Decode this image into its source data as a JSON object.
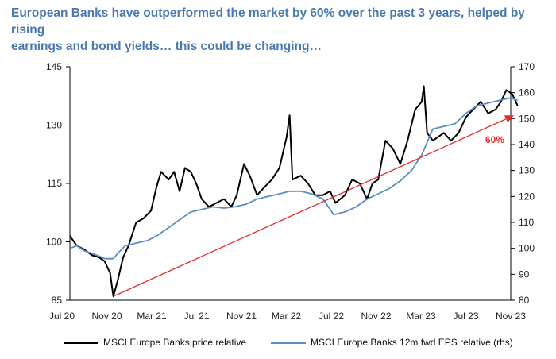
{
  "headline": {
    "line1": "European Banks have outperformed the market by 60% over the past 3 years, helped by rising",
    "line2": "earnings and bond yields… this could be changing…"
  },
  "chart_data": {
    "type": "line",
    "title": "European Banks have outperformed the market by 60% over the past 3 years, helped by rising earnings and bond yields… this could be changing…",
    "x_ticks": [
      "Jul 20",
      "Nov 20",
      "Mar 21",
      "Jul 21",
      "Nov 21",
      "Mar 22",
      "Jul 22",
      "Nov 22",
      "Mar 23",
      "Jul 23",
      "Nov 23"
    ],
    "xlim": [
      "2020-07",
      "2023-11"
    ],
    "y_left": {
      "ticks": [
        85,
        100,
        115,
        130,
        145
      ],
      "ylim": [
        85,
        145
      ]
    },
    "y_right": {
      "ticks": [
        80,
        90,
        100,
        110,
        120,
        130,
        140,
        150,
        160,
        170
      ],
      "ylim": [
        80,
        170
      ]
    },
    "grid": false,
    "legend_position": "bottom",
    "series": [
      {
        "name": "MSCI Europe Banks price relative",
        "axis": "left",
        "color": "#000000",
        "points": [
          [
            "2020-07-01",
            101.5
          ],
          [
            "2020-07-20",
            99
          ],
          [
            "2020-08-10",
            98
          ],
          [
            "2020-09-01",
            96.5
          ],
          [
            "2020-09-20",
            96
          ],
          [
            "2020-10-05",
            95
          ],
          [
            "2020-10-20",
            92
          ],
          [
            "2020-10-29",
            86
          ],
          [
            "2020-11-10",
            90
          ],
          [
            "2020-11-25",
            96
          ],
          [
            "2020-12-10",
            99
          ],
          [
            "2020-12-31",
            105
          ],
          [
            "2021-01-20",
            106
          ],
          [
            "2021-02-10",
            108
          ],
          [
            "2021-02-25",
            114
          ],
          [
            "2021-03-10",
            118
          ],
          [
            "2021-03-31",
            116
          ],
          [
            "2021-04-15",
            118
          ],
          [
            "2021-04-30",
            113
          ],
          [
            "2021-05-15",
            119
          ],
          [
            "2021-05-31",
            118
          ],
          [
            "2021-06-15",
            115
          ],
          [
            "2021-06-30",
            111
          ],
          [
            "2021-07-20",
            109
          ],
          [
            "2021-08-10",
            110
          ],
          [
            "2021-08-31",
            111
          ],
          [
            "2021-09-20",
            109
          ],
          [
            "2021-10-05",
            112
          ],
          [
            "2021-10-25",
            120
          ],
          [
            "2021-11-10",
            117
          ],
          [
            "2021-11-30",
            112
          ],
          [
            "2021-12-20",
            114
          ],
          [
            "2022-01-10",
            116
          ],
          [
            "2022-01-31",
            119
          ],
          [
            "2022-02-20",
            127
          ],
          [
            "2022-02-28",
            132.5
          ],
          [
            "2022-03-08",
            116
          ],
          [
            "2022-03-31",
            117
          ],
          [
            "2022-04-20",
            115
          ],
          [
            "2022-05-10",
            112
          ],
          [
            "2022-05-31",
            112
          ],
          [
            "2022-06-20",
            113
          ],
          [
            "2022-07-05",
            110
          ],
          [
            "2022-07-31",
            112
          ],
          [
            "2022-08-20",
            116
          ],
          [
            "2022-09-10",
            115
          ],
          [
            "2022-09-30",
            111
          ],
          [
            "2022-10-15",
            115
          ],
          [
            "2022-10-31",
            116
          ],
          [
            "2022-11-20",
            126
          ],
          [
            "2022-12-10",
            124
          ],
          [
            "2022-12-31",
            120
          ],
          [
            "2023-01-20",
            126
          ],
          [
            "2023-02-10",
            134
          ],
          [
            "2023-02-28",
            136
          ],
          [
            "2023-03-06",
            140
          ],
          [
            "2023-03-15",
            128
          ],
          [
            "2023-03-31",
            126
          ],
          [
            "2023-04-15",
            127
          ],
          [
            "2023-04-30",
            128
          ],
          [
            "2023-05-20",
            126
          ],
          [
            "2023-06-10",
            128
          ],
          [
            "2023-06-30",
            132
          ],
          [
            "2023-07-20",
            134
          ],
          [
            "2023-08-10",
            136
          ],
          [
            "2023-08-31",
            133
          ],
          [
            "2023-09-20",
            134
          ],
          [
            "2023-10-05",
            136
          ],
          [
            "2023-10-20",
            139
          ],
          [
            "2023-11-05",
            138
          ],
          [
            "2023-11-20",
            135
          ]
        ]
      },
      {
        "name": "MSCI Europe Banks 12m fwd EPS relative (rhs)",
        "axis": "right",
        "color": "#5b8ec2",
        "points": [
          [
            "2020-07-01",
            100
          ],
          [
            "2020-07-20",
            101
          ],
          [
            "2020-08-10",
            99
          ],
          [
            "2020-09-01",
            98
          ],
          [
            "2020-09-20",
            97
          ],
          [
            "2020-10-05",
            96
          ],
          [
            "2020-10-29",
            96
          ],
          [
            "2020-11-10",
            98
          ],
          [
            "2020-12-01",
            101
          ],
          [
            "2020-12-31",
            102
          ],
          [
            "2021-01-31",
            103
          ],
          [
            "2021-02-28",
            105
          ],
          [
            "2021-03-31",
            108
          ],
          [
            "2021-04-30",
            111
          ],
          [
            "2021-05-31",
            114
          ],
          [
            "2021-06-30",
            115
          ],
          [
            "2021-07-31",
            116
          ],
          [
            "2021-08-31",
            115.5
          ],
          [
            "2021-09-30",
            116
          ],
          [
            "2021-10-31",
            117
          ],
          [
            "2021-11-30",
            119
          ],
          [
            "2021-12-31",
            120
          ],
          [
            "2022-01-31",
            121
          ],
          [
            "2022-02-28",
            122
          ],
          [
            "2022-03-31",
            122
          ],
          [
            "2022-04-30",
            121
          ],
          [
            "2022-05-31",
            119
          ],
          [
            "2022-06-30",
            113
          ],
          [
            "2022-07-31",
            114
          ],
          [
            "2022-08-31",
            116
          ],
          [
            "2022-09-30",
            119
          ],
          [
            "2022-10-31",
            121
          ],
          [
            "2022-11-30",
            123
          ],
          [
            "2022-12-31",
            126
          ],
          [
            "2023-01-31",
            130
          ],
          [
            "2023-02-28",
            136
          ],
          [
            "2023-03-31",
            146
          ],
          [
            "2023-04-30",
            147
          ],
          [
            "2023-05-31",
            148
          ],
          [
            "2023-06-30",
            152
          ],
          [
            "2023-07-31",
            155
          ],
          [
            "2023-08-31",
            156
          ],
          [
            "2023-09-30",
            157
          ],
          [
            "2023-10-31",
            158
          ],
          [
            "2023-11-20",
            157
          ]
        ]
      }
    ],
    "annotation": {
      "label": "60%",
      "color": "#e03030",
      "axis": "left",
      "from": [
        "2020-10-29",
        86
      ],
      "to": [
        "2023-11-10",
        132.5
      ]
    }
  }
}
